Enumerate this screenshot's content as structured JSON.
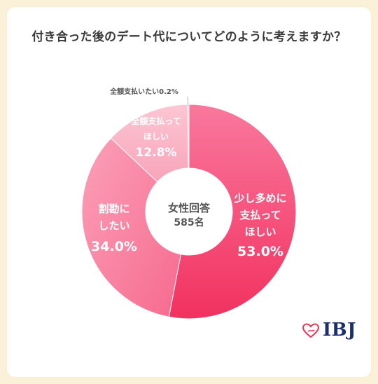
{
  "title": "付き合った後のデート代についてどのように考えますか？",
  "center": {
    "line1": "女性回答",
    "line2": "585名"
  },
  "chart_data": {
    "type": "pie",
    "title": "付き合った後のデート代についてどのように考えますか？",
    "slices": [
      {
        "label_lines": [
          "少し多めに",
          "支払って",
          "ほしい"
        ],
        "value": 53.0,
        "value_label": "53.0%",
        "color": "#f23d6b"
      },
      {
        "label_lines": [
          "割勘に",
          "したい"
        ],
        "value": 34.0,
        "value_label": "34.0%",
        "color": "#f8809f"
      },
      {
        "label_lines": [
          "全額支払って",
          "ほしい"
        ],
        "value": 12.8,
        "value_label": "12.8%",
        "color": "#f8aec0"
      },
      {
        "label_lines": [
          "全額支払いたい0.2%"
        ],
        "value": 0.2,
        "value_label": "",
        "color": "#fbc9d5"
      }
    ]
  },
  "logo": {
    "text": "IBJ"
  }
}
